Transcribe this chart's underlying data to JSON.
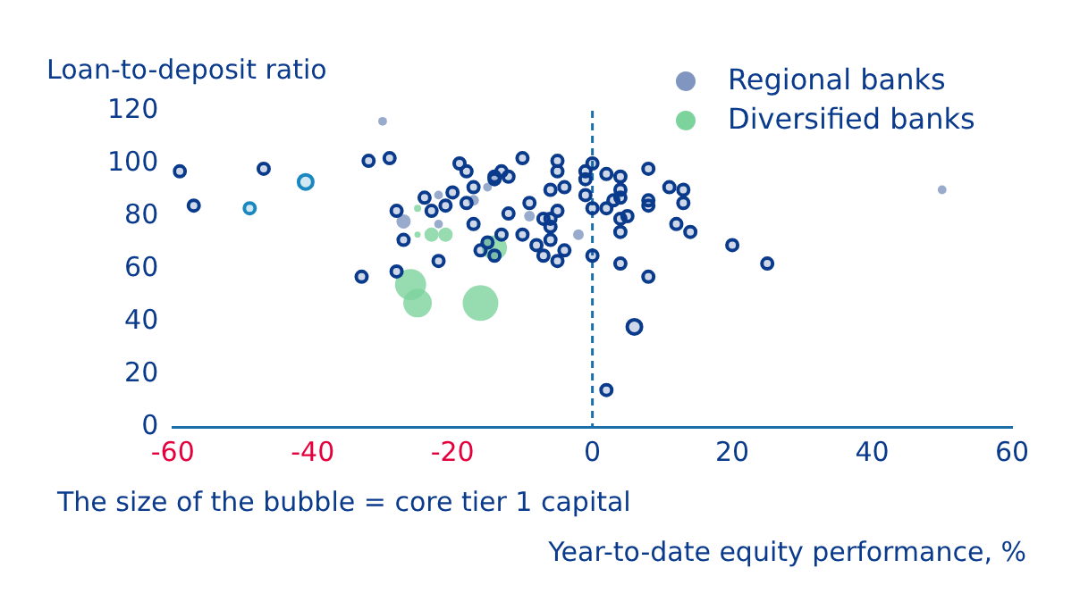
{
  "chart_data": {
    "type": "bubble",
    "ylabel": "Loan-to-deposit ratio",
    "xlabel": "Year-to-date equity performance, %",
    "annotations": [
      "The size of the bubble = core tier 1 capital"
    ],
    "xlim": [
      -60,
      60
    ],
    "xticks": [
      -60,
      -40,
      -20,
      0,
      20,
      40,
      60
    ],
    "ylim": [
      0,
      120
    ],
    "yticks": [
      0,
      20,
      40,
      60,
      80,
      100,
      120
    ],
    "grid": false,
    "legend": "top right",
    "ref_lines": [
      {
        "axis": "x",
        "value": 0,
        "color": "#1a6fa8",
        "line_style": "dashed"
      }
    ],
    "series": [
      {
        "color": "#0a3a8c",
        "x": [
          -59,
          -57,
          -47,
          -33,
          -32,
          -29,
          -19,
          -18,
          -14,
          -13,
          -12,
          -14,
          -10,
          -5,
          -5,
          -1,
          0,
          -1,
          2,
          -17,
          -20,
          -24,
          -18,
          -21,
          -23,
          -28,
          -12,
          -6,
          -4,
          -1,
          -9,
          -7,
          -6,
          -5,
          -6,
          0,
          2,
          4,
          4,
          -17,
          -27,
          -13,
          -10,
          -6,
          -8,
          -7,
          -4,
          -5,
          -22,
          0,
          4,
          -28,
          -16,
          -14,
          -15,
          2,
          4,
          8,
          11,
          13,
          13,
          8,
          8,
          4,
          3,
          5,
          4,
          12,
          14,
          20,
          25,
          8,
          6
        ],
        "values": [
          97,
          84,
          98,
          57,
          101,
          102,
          100,
          97,
          95,
          97,
          95,
          94,
          102,
          101,
          97,
          97,
          100,
          94,
          96,
          91,
          89,
          87,
          85,
          84,
          82,
          82,
          81,
          90,
          91,
          88,
          85,
          79,
          79,
          82,
          76,
          83,
          83,
          87,
          79,
          77,
          71,
          73,
          73,
          71,
          69,
          65,
          67,
          63,
          63,
          65,
          62,
          59,
          67,
          65,
          70,
          14,
          95,
          98,
          91,
          90,
          85,
          86,
          84,
          90,
          86,
          80,
          74,
          77,
          74,
          69,
          62,
          57,
          38
        ],
        "sizes": [
          0.09,
          0.09,
          0.09,
          0.09,
          0.09,
          0.09,
          0.09,
          0.09,
          0.09,
          0.09,
          0.09,
          0.09,
          0.09,
          0.09,
          0.09,
          0.09,
          0.09,
          0.09,
          0.09,
          0.09,
          0.09,
          0.09,
          0.09,
          0.09,
          0.09,
          0.09,
          0.09,
          0.09,
          0.09,
          0.09,
          0.09,
          0.09,
          0.09,
          0.09,
          0.09,
          0.09,
          0.09,
          0.09,
          0.09,
          0.09,
          0.09,
          0.09,
          0.09,
          0.09,
          0.09,
          0.09,
          0.09,
          0.09,
          0.09,
          0.09,
          0.09,
          0.09,
          0.09,
          0.09,
          0.09,
          0.09,
          0.09,
          0.09,
          0.09,
          0.09,
          0.09,
          0.09,
          0.09,
          0.09,
          0.09,
          0.09,
          0.09,
          0.09,
          0.09,
          0.09,
          0.09,
          0.09,
          0.16
        ]
      },
      {
        "color": "#1b87c0",
        "x": [
          -49,
          -41
        ],
        "values": [
          83,
          93
        ],
        "sizes": [
          0.09,
          0.16
        ]
      },
      {
        "name": "Regional banks",
        "color": "#8096c0",
        "x": [
          -27,
          -17,
          -22,
          -15,
          -22,
          -9,
          -2,
          -30,
          50
        ],
        "values": [
          78,
          86,
          88,
          91,
          77,
          80,
          73,
          116,
          90
        ],
        "sizes": [
          0.16,
          0.09,
          0.06,
          0.06,
          0.06,
          0.09,
          0.09,
          0.06,
          0.06
        ]
      },
      {
        "name": "Diversified banks",
        "color": "#7dd39c",
        "x": [
          -25,
          -25,
          -23,
          -21,
          -14,
          -26,
          -25,
          -16
        ],
        "values": [
          83,
          73,
          73,
          73,
          68,
          54,
          47,
          47
        ],
        "sizes": [
          0.04,
          0.03,
          0.16,
          0.16,
          0.49,
          0.76,
          0.64,
          1
        ]
      }
    ]
  }
}
